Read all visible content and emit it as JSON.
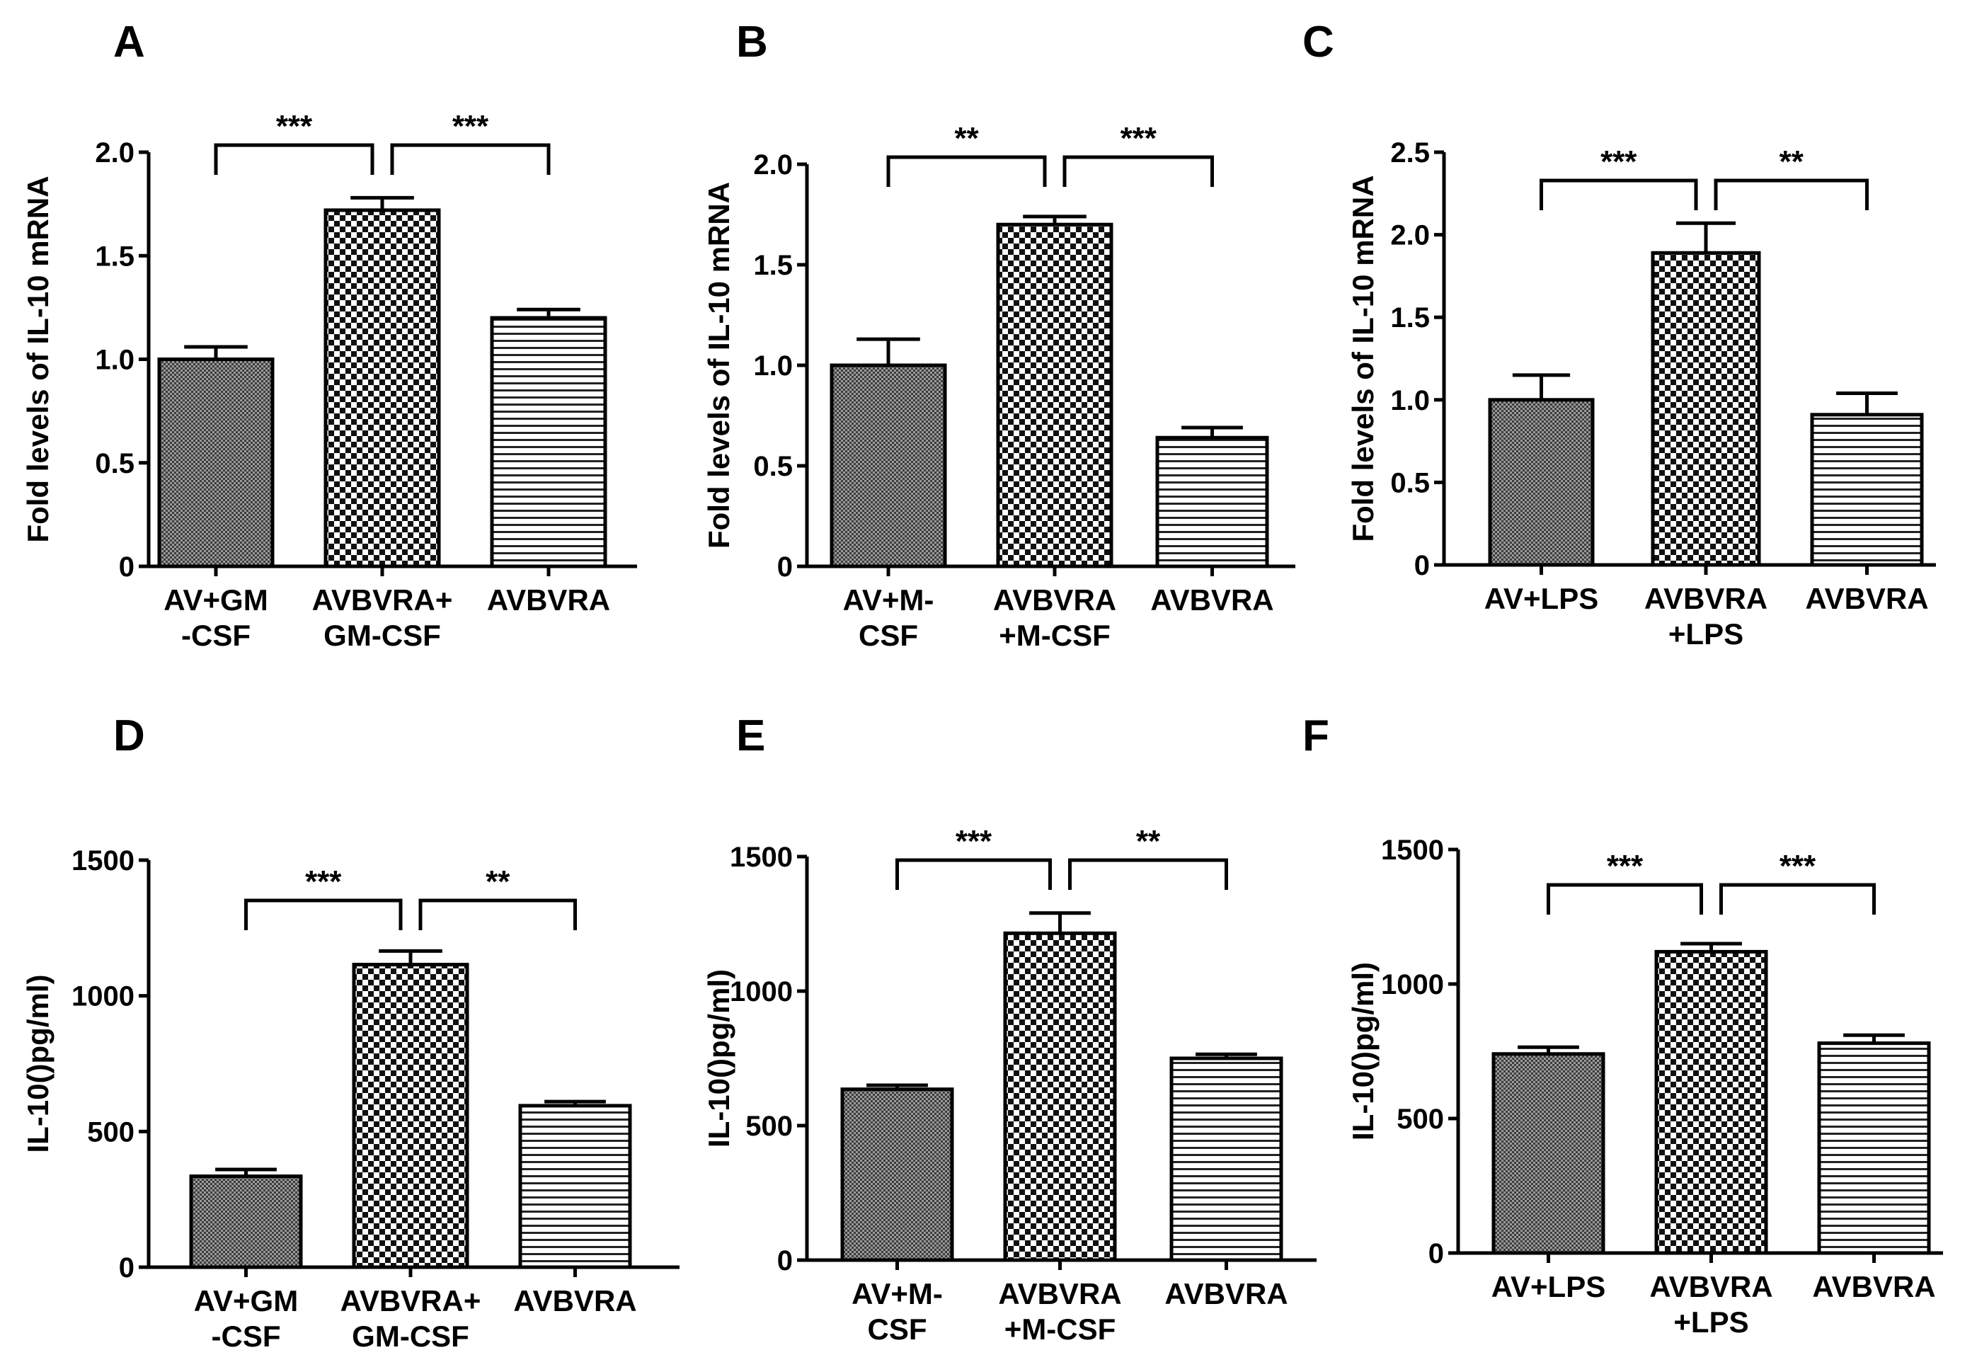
{
  "figure": {
    "background": "#ffffff",
    "bar_color": "#000000"
  },
  "chart_data": [
    {
      "panel": "A",
      "type": "bar",
      "ylabel": "Fold levels of IL-10 mRNA",
      "ylim": [
        0,
        2.0
      ],
      "yticks": [
        0,
        0.5,
        1.0,
        1.5,
        2.0
      ],
      "ytick_labels": [
        "0",
        "0.5",
        "1.0",
        "1.5",
        "2.0"
      ],
      "categories": [
        [
          "AV+GM",
          "-CSF"
        ],
        [
          "AVBVRA+",
          "GM-CSF"
        ],
        [
          "AVBVRA"
        ]
      ],
      "values": [
        1.0,
        1.72,
        1.2
      ],
      "errors": [
        0.06,
        0.06,
        0.04
      ],
      "patterns": [
        "fine",
        "checker",
        "hstripe"
      ],
      "significance": [
        {
          "from": 0,
          "to": 1,
          "label": "***"
        },
        {
          "from": 1,
          "to": 2,
          "label": "***"
        }
      ]
    },
    {
      "panel": "B",
      "type": "bar",
      "ylabel": "Fold levels of IL-10 mRNA",
      "ylim": [
        0,
        2.0
      ],
      "yticks": [
        0,
        0.5,
        1.0,
        1.5,
        2.0
      ],
      "ytick_labels": [
        "0",
        "0.5",
        "1.0",
        "1.5",
        "2.0"
      ],
      "categories": [
        [
          "AV+M-",
          "CSF"
        ],
        [
          "AVBVRA",
          "+M-CSF"
        ],
        [
          "AVBVRA"
        ]
      ],
      "values": [
        1.0,
        1.7,
        0.64
      ],
      "errors": [
        0.13,
        0.04,
        0.05
      ],
      "patterns": [
        "fine",
        "checker",
        "hstripe"
      ],
      "significance": [
        {
          "from": 0,
          "to": 1,
          "label": "**"
        },
        {
          "from": 1,
          "to": 2,
          "label": "***"
        }
      ]
    },
    {
      "panel": "C",
      "type": "bar",
      "ylabel": "Fold levels of IL-10 mRNA",
      "ylim": [
        0,
        2.5
      ],
      "yticks": [
        0,
        0.5,
        1.0,
        1.5,
        2.0,
        2.5
      ],
      "ytick_labels": [
        "0",
        "0.5",
        "1.0",
        "1.5",
        "2.0",
        "2.5"
      ],
      "categories": [
        [
          "AV+LPS"
        ],
        [
          "AVBVRA",
          "+LPS"
        ],
        [
          "AVBVRA"
        ]
      ],
      "values": [
        1.0,
        1.89,
        0.91
      ],
      "errors": [
        0.15,
        0.18,
        0.13
      ],
      "patterns": [
        "fine",
        "checker",
        "hstripe"
      ],
      "significance": [
        {
          "from": 0,
          "to": 1,
          "label": "***"
        },
        {
          "from": 1,
          "to": 2,
          "label": "**"
        }
      ]
    },
    {
      "panel": "D",
      "type": "bar",
      "ylabel": "IL-10()pg/ml)",
      "ylim": [
        0,
        1500
      ],
      "yticks": [
        0,
        500,
        1000,
        1500
      ],
      "ytick_labels": [
        "0",
        "500",
        "1000",
        "1500"
      ],
      "categories": [
        [
          "AV+GM",
          "-CSF"
        ],
        [
          "AVBVRA+",
          "GM-CSF"
        ],
        [
          "AVBVRA"
        ]
      ],
      "values": [
        335,
        1115,
        595
      ],
      "errors": [
        25,
        50,
        15
      ],
      "patterns": [
        "fine",
        "checker",
        "hstripe"
      ],
      "significance": [
        {
          "from": 0,
          "to": 1,
          "label": "***"
        },
        {
          "from": 1,
          "to": 2,
          "label": "**"
        }
      ]
    },
    {
      "panel": "E",
      "type": "bar",
      "ylabel": "IL-10()pg/ml)",
      "ylim": [
        0,
        1500
      ],
      "yticks": [
        0,
        500,
        1000,
        1500
      ],
      "ytick_labels": [
        "0",
        "500",
        "1000",
        "1500"
      ],
      "categories": [
        [
          "AV+M-",
          "CSF"
        ],
        [
          "AVBVRA",
          "+M-CSF"
        ],
        [
          "AVBVRA"
        ]
      ],
      "values": [
        635,
        1215,
        750
      ],
      "errors": [
        15,
        75,
        15
      ],
      "patterns": [
        "fine",
        "checker",
        "hstripe"
      ],
      "significance": [
        {
          "from": 0,
          "to": 1,
          "label": "***"
        },
        {
          "from": 1,
          "to": 2,
          "label": "**"
        }
      ]
    },
    {
      "panel": "F",
      "type": "bar",
      "ylabel": "IL-10()pg/ml)",
      "ylim": [
        0,
        1500
      ],
      "yticks": [
        0,
        500,
        1000,
        1500
      ],
      "ytick_labels": [
        "0",
        "500",
        "1000",
        "1500"
      ],
      "categories": [
        [
          "AV+LPS"
        ],
        [
          "AVBVRA",
          "+LPS"
        ],
        [
          "AVBVRA"
        ]
      ],
      "values": [
        740,
        1120,
        780
      ],
      "errors": [
        25,
        30,
        30
      ],
      "patterns": [
        "fine",
        "checker",
        "hstripe"
      ],
      "significance": [
        {
          "from": 0,
          "to": 1,
          "label": "***"
        },
        {
          "from": 1,
          "to": 2,
          "label": "***"
        }
      ]
    }
  ]
}
